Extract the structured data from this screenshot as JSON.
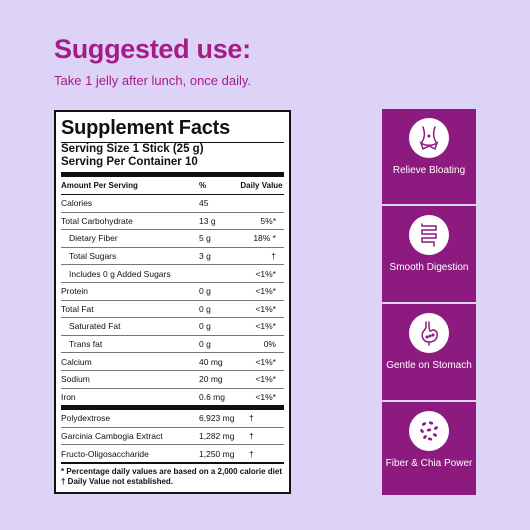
{
  "heading": "Suggested use:",
  "subtext": "Take 1 jelly after lunch, once daily.",
  "facts": {
    "title": "Supplement Facts",
    "serving_size": "Serving Size 1 Stick (25 g)",
    "servings_per_container": "Serving Per Container 10",
    "col_amount": "Amount Per Serving",
    "col_percent": "%",
    "col_dv": "Daily Value",
    "rows": [
      {
        "name": "Calories",
        "amount": "45",
        "dv": ""
      },
      {
        "name": "Total Carbohydrate",
        "amount": "13 g",
        "dv": "5%*"
      },
      {
        "name": "Dietary Fiber",
        "amount": "5 g",
        "dv": "18% *"
      },
      {
        "name": "Total Sugars",
        "amount": "3 g",
        "dv": "†"
      },
      {
        "name": "Includes 0 g Added Sugars",
        "amount": "",
        "dv": "<1%*"
      },
      {
        "name": "Protein",
        "amount": "0 g",
        "dv": "<1%*"
      },
      {
        "name": "Total Fat",
        "amount": "0 g",
        "dv": "<1%*"
      },
      {
        "name": "Saturated Fat",
        "amount": "0 g",
        "dv": "<1%*"
      },
      {
        "name": "Trans fat",
        "amount": "0 g",
        "dv": "0%"
      },
      {
        "name": "Calcium",
        "amount": "40 mg",
        "dv": "<1%*"
      },
      {
        "name": "Sodium",
        "amount": "20 mg",
        "dv": "<1%*"
      },
      {
        "name": "Iron",
        "amount": "0.6 mg",
        "dv": "<1%*"
      }
    ],
    "other_rows": [
      {
        "name": "Polydextrose",
        "amount": "6,923 mg",
        "dv": "†"
      },
      {
        "name": "Garcinia Cambogia Extract",
        "amount": "1,282 mg",
        "dv": "†"
      },
      {
        "name": "Fructo-Oligosaccharide",
        "amount": "1,250 mg",
        "dv": "†"
      }
    ],
    "footnote_1": "* Percentage daily values are based on a 2,000 calorie diet",
    "footnote_2": "† Daily Value not established."
  },
  "benefits": [
    {
      "label": "Relieve Bloating",
      "icon": "waist-icon"
    },
    {
      "label": "Smooth Digestion",
      "icon": "intestine-icon"
    },
    {
      "label": "Gentle on Stomach",
      "icon": "stomach-icon"
    },
    {
      "label": "Fiber & Chia Power",
      "icon": "chia-seeds-icon"
    }
  ],
  "colors": {
    "background": "#ddd3f7",
    "accent": "#a61b86",
    "panel": "#8c1a7f"
  }
}
